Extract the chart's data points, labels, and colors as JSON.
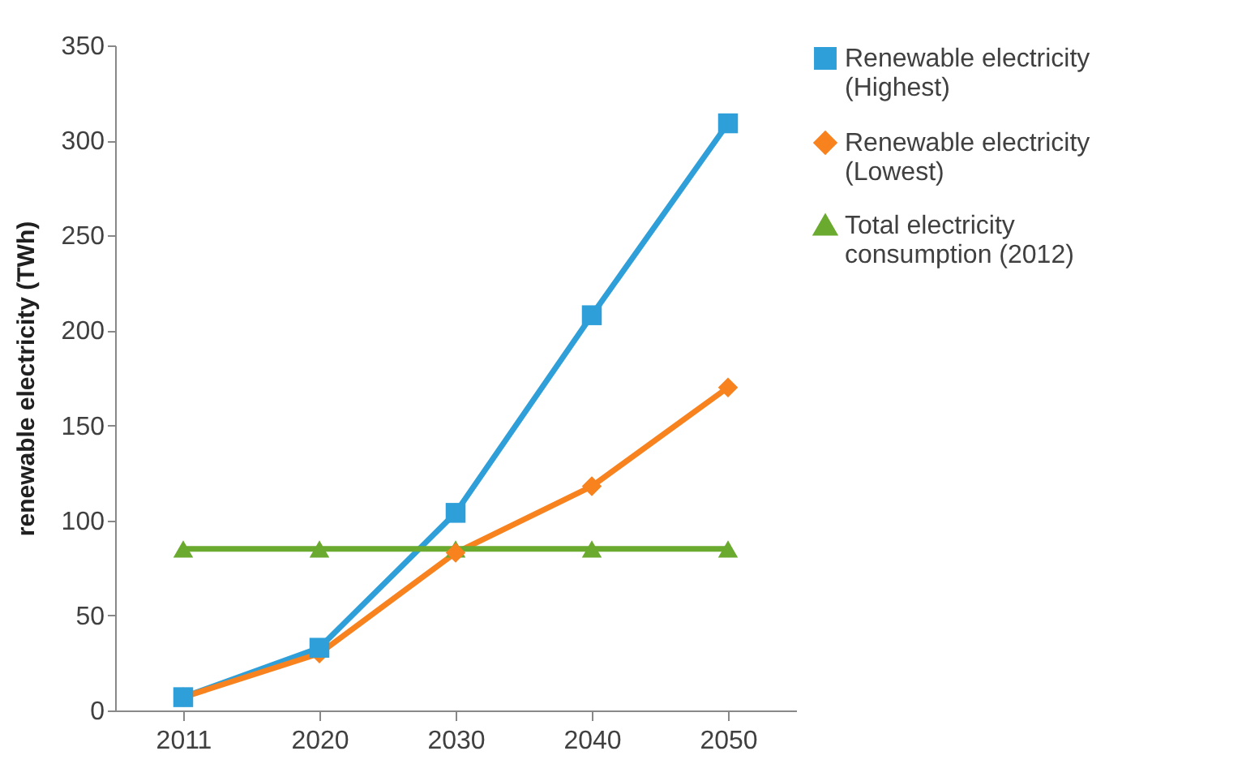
{
  "chart_data": {
    "type": "line",
    "ylabel": "renewable electricity (TWh)",
    "categories": [
      "2011",
      "2020",
      "2030",
      "2040",
      "2050"
    ],
    "series": [
      {
        "name": "Renewable electricity (Highest)",
        "color": "#2e9fd8",
        "marker": "square",
        "values": [
          7,
          33,
          104,
          208,
          309
        ]
      },
      {
        "name": "Renewable electricity (Lowest)",
        "color": "#f7821e",
        "marker": "diamond",
        "values": [
          7,
          30,
          83,
          118,
          170
        ]
      },
      {
        "name": "Total electricity consumption (2012)",
        "color": "#6aaa2e",
        "marker": "triangle",
        "values": [
          85,
          85,
          85,
          85,
          85
        ]
      }
    ],
    "ylim": [
      0,
      350
    ],
    "yticks": [
      0,
      50,
      100,
      150,
      200,
      250,
      300,
      350
    ],
    "grid": false,
    "legend": "right"
  }
}
